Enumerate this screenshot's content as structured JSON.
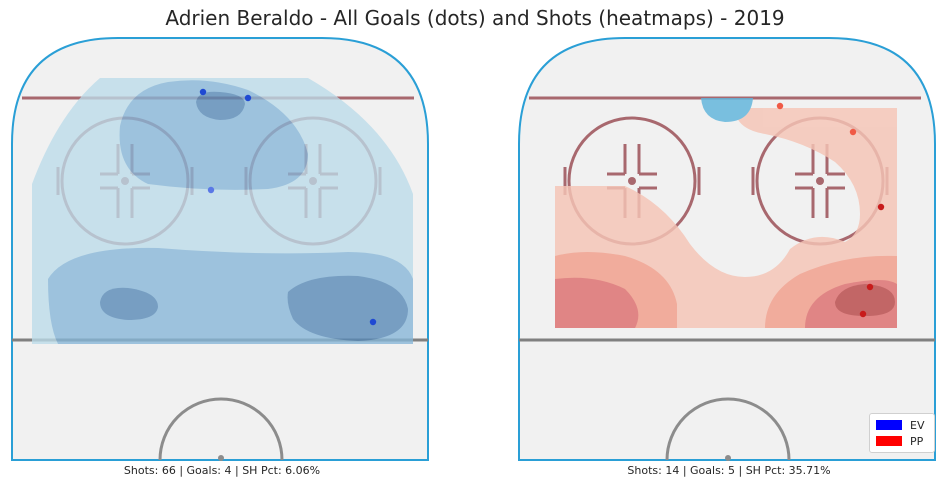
{
  "chart_data": {
    "type": "heatmap",
    "title": "Adrien Beraldo - All Goals (dots) and Shots (heatmaps) - 2019",
    "legend": {
      "placement": "bottom-right",
      "entries": [
        {
          "label": "EV",
          "color": "#0000ff"
        },
        {
          "label": "PP",
          "color": "#ff0000"
        }
      ]
    },
    "panels": [
      {
        "strength": "EV",
        "caption": "Shots: 66 | Goals: 4 | SH Pct: 6.06%",
        "shots": 66,
        "goals_count": 4,
        "sh_pct": 6.06,
        "colors": {
          "heat_light": "#bcdcea",
          "heat_mid": "#86b6d8",
          "heat_dark": "#5688b6",
          "goal": "#1f49d3",
          "goal_light": "#5a78e6"
        },
        "goals": [
          [
            195,
            58
          ],
          [
            240,
            64
          ],
          [
            203,
            156
          ],
          [
            365,
            288
          ]
        ]
      },
      {
        "strength": "PP",
        "caption": "Shots: 14 | Goals: 5 | SH Pct: 35.71%",
        "shots": 14,
        "goals_count": 5,
        "sh_pct": 35.71,
        "colors": {
          "heat_light": "#f5c5b6",
          "heat_mid": "#f19d8a",
          "heat_dark": "#dd6e6e",
          "goal": "#c81b1b",
          "goal_light": "#f05a46"
        },
        "goals": [
          [
            265,
            72
          ],
          [
            338,
            98
          ],
          [
            366,
            173
          ],
          [
            355,
            253
          ],
          [
            348,
            280
          ]
        ]
      }
    ]
  }
}
